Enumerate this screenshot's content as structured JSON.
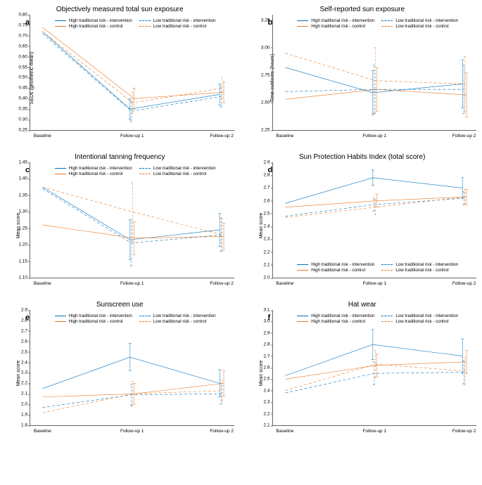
{
  "colors": {
    "blue": "#0072bc",
    "orange": "#e87722",
    "axis": "#666666",
    "bg": "#ffffff"
  },
  "fonts": {
    "title": 10,
    "letter": 11,
    "tick": 6.5,
    "legend": 6.2,
    "ylabel": 7
  },
  "x_labels": [
    "Baseline",
    "Follow-up 1",
    "Follow-up 2"
  ],
  "x_positions_pct": [
    6,
    50,
    94
  ],
  "series_styles": [
    {
      "key": "hi_int",
      "label": "High traditional risk - intervention",
      "color": "#0072bc",
      "dash": "solid"
    },
    {
      "key": "hi_ctl",
      "label": "High traditional risk - control",
      "color": "#e87722",
      "dash": "solid"
    },
    {
      "key": "lo_int",
      "label": "Low traditional risk - intervention",
      "color": "#0072bc",
      "dash": "dashed"
    },
    {
      "key": "lo_ctl",
      "label": "Low traditional risk - control",
      "color": "#e87722",
      "dash": "dashed"
    }
  ],
  "panels": [
    {
      "id": "a",
      "letter": "a",
      "title": "Objectively measured total sun exposure",
      "ylabel": "SEDs (geometric mean)",
      "ylim": [
        0.25,
        0.8
      ],
      "ystep": 0.05,
      "legend_pos": "top",
      "line_width": 1,
      "series": {
        "hi_int": {
          "y": [
            0.72,
            0.35,
            0.42
          ],
          "err": [
            null,
            0.05,
            0.05
          ]
        },
        "hi_ctl": {
          "y": [
            0.74,
            0.4,
            0.43
          ],
          "err": [
            null,
            0.05,
            0.05
          ]
        },
        "lo_int": {
          "y": [
            0.71,
            0.34,
            0.41
          ],
          "err": [
            null,
            0.05,
            0.05
          ]
        },
        "lo_ctl": {
          "y": [
            0.72,
            0.38,
            0.45
          ],
          "err": [
            null,
            0.05,
            0.05
          ]
        }
      }
    },
    {
      "id": "b",
      "letter": "b",
      "title": "Self-reported sun exposure",
      "ylabel": "Time outdoors (hours)",
      "ylim": [
        2.25,
        3.3
      ],
      "ystep": 0.25,
      "y_ticks": [
        2.25,
        2.5,
        2.75,
        3.0,
        3.25
      ],
      "tick_precision": 2,
      "legend_pos": "top",
      "line_width": 1,
      "series": {
        "hi_int": {
          "y": [
            2.82,
            2.59,
            2.67
          ],
          "err": [
            null,
            0.2,
            0.22
          ]
        },
        "hi_ctl": {
          "y": [
            2.53,
            2.62,
            2.57
          ],
          "err": [
            null,
            0.2,
            0.2
          ]
        },
        "lo_int": {
          "y": [
            2.6,
            2.62,
            2.62
          ],
          "err": [
            null,
            0.22,
            0.22
          ]
        },
        "lo_ctl": {
          "y": [
            2.95,
            2.7,
            2.67
          ],
          "err": [
            null,
            0.3,
            0.25
          ]
        }
      }
    },
    {
      "id": "c",
      "letter": "c",
      "title": "Intentional tanning frequency",
      "ylabel": "Mean score",
      "ylim": [
        1.1,
        1.45
      ],
      "ystep": 0.05,
      "legend_pos": "top",
      "line_width": 1,
      "series": {
        "hi_int": {
          "y": [
            1.375,
            1.215,
            1.245
          ],
          "err": [
            null,
            0.06,
            0.05
          ]
        },
        "hi_ctl": {
          "y": [
            1.26,
            1.22,
            1.225
          ],
          "err": [
            null,
            0.05,
            0.04
          ]
        },
        "lo_int": {
          "y": [
            1.37,
            1.205,
            1.23
          ],
          "err": [
            null,
            0.07,
            0.05
          ]
        },
        "lo_ctl": {
          "y": [
            1.375,
            1.3,
            1.23
          ],
          "err": [
            null,
            0.09,
            0.05
          ]
        }
      }
    },
    {
      "id": "d",
      "letter": "d",
      "title": "Sun Protection Habits Index (total score)",
      "ylabel": "Mean score",
      "ylim": [
        2.0,
        2.9
      ],
      "ystep": 0.1,
      "legend_pos": "bottom",
      "line_width": 1,
      "series": {
        "hi_int": {
          "y": [
            2.58,
            2.78,
            2.7
          ],
          "err": [
            null,
            0.06,
            0.08
          ]
        },
        "hi_ctl": {
          "y": [
            2.55,
            2.6,
            2.63
          ],
          "err": [
            null,
            0.05,
            0.06
          ]
        },
        "lo_int": {
          "y": [
            2.48,
            2.57,
            2.62
          ],
          "err": [
            null,
            0.05,
            0.05
          ]
        },
        "lo_ctl": {
          "y": [
            2.47,
            2.55,
            2.63
          ],
          "err": [
            null,
            0.06,
            0.06
          ]
        }
      }
    },
    {
      "id": "e",
      "letter": "e",
      "title": "Sunscreen use",
      "ylabel": "Mean score",
      "ylim": [
        1.8,
        2.9
      ],
      "ystep": 0.1,
      "legend_pos": "top",
      "line_width": 1,
      "series": {
        "hi_int": {
          "y": [
            2.15,
            2.45,
            2.2
          ],
          "err": [
            null,
            0.13,
            0.13
          ]
        },
        "hi_ctl": {
          "y": [
            2.07,
            2.1,
            2.2
          ],
          "err": [
            null,
            0.1,
            0.12
          ]
        },
        "lo_int": {
          "y": [
            1.97,
            2.09,
            2.1
          ],
          "err": [
            null,
            0.1,
            0.1
          ]
        },
        "lo_ctl": {
          "y": [
            1.92,
            2.1,
            2.13
          ],
          "err": [
            null,
            0.12,
            0.1
          ]
        }
      }
    },
    {
      "id": "f",
      "letter": "f",
      "title": "Hat wear",
      "ylabel": "Mean score",
      "ylim": [
        2.1,
        3.1
      ],
      "ystep": 0.1,
      "legend_pos": "top",
      "line_width": 1,
      "series": {
        "hi_int": {
          "y": [
            2.53,
            2.8,
            2.7
          ],
          "err": [
            null,
            0.13,
            0.15
          ]
        },
        "hi_ctl": {
          "y": [
            2.5,
            2.62,
            2.65
          ],
          "err": [
            null,
            0.1,
            0.1
          ]
        },
        "lo_int": {
          "y": [
            2.38,
            2.55,
            2.56
          ],
          "err": [
            null,
            0.1,
            0.1
          ]
        },
        "lo_ctl": {
          "y": [
            2.4,
            2.63,
            2.57
          ],
          "err": [
            null,
            0.12,
            0.12
          ]
        }
      }
    }
  ]
}
